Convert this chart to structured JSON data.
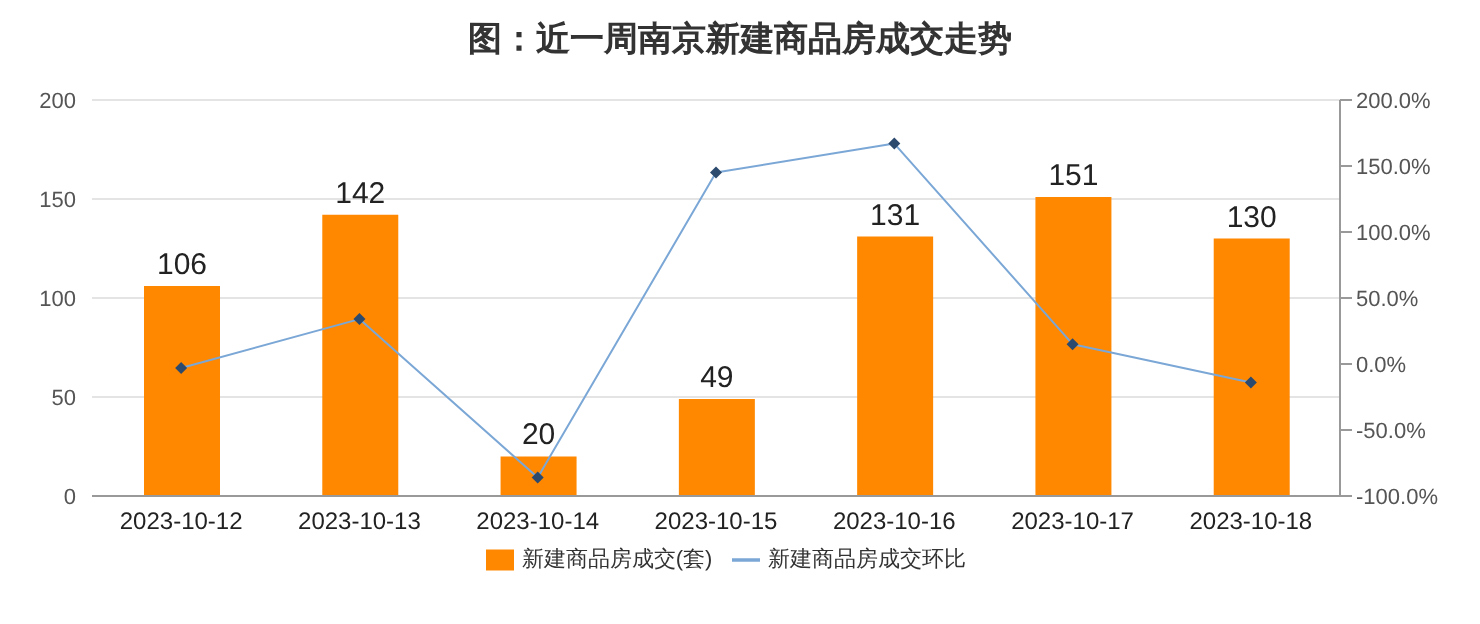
{
  "chart_data": {
    "type": "bar",
    "title": "图：近一周南京新建商品房成交走势",
    "categories": [
      "2023-10-12",
      "2023-10-13",
      "2023-10-14",
      "2023-10-15",
      "2023-10-16",
      "2023-10-17",
      "2023-10-18"
    ],
    "series": [
      {
        "name": "新建商品房成交(套)",
        "color": "#ff8800",
        "values": [
          106,
          142,
          20,
          49,
          131,
          151,
          130
        ],
        "value_labels": [
          "106",
          "142",
          "20",
          "49",
          "131",
          "151",
          "130"
        ]
      },
      {
        "name": "新建商品房成交环比",
        "type": "line",
        "axis": "y2",
        "color": "#7ba7d6",
        "values": [
          -3,
          34,
          -86,
          145,
          167,
          15,
          -14
        ]
      }
    ],
    "marker": "diamond",
    "ylim": [
      0,
      200
    ],
    "yticks": [
      0,
      50,
      100,
      150,
      200
    ],
    "y2lim": [
      -100,
      200
    ],
    "y2ticks": [
      {
        "value": -100,
        "label": "-100.0%"
      },
      {
        "value": -50,
        "label": "-50.0%"
      },
      {
        "value": 0,
        "label": "0.0%"
      },
      {
        "value": 50,
        "label": "50.0%"
      },
      {
        "value": 100,
        "label": "100.0%"
      },
      {
        "value": 150,
        "label": "150.0%"
      },
      {
        "value": 200,
        "label": "200.0%"
      }
    ],
    "grid": "y",
    "legend": "bottom"
  }
}
